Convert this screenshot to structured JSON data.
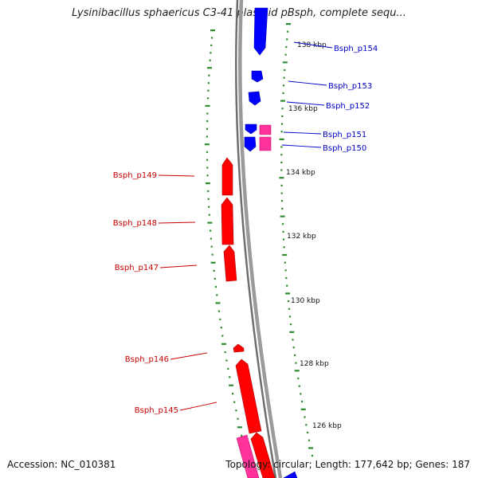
{
  "title": "Lysinibacillus sphaericus C3-41 plasmid pBsph, complete sequ...",
  "accession_text": "Accession: NC_010381",
  "summary_text": "Topology: circular; Length: 177,642 bp; Genes: 187",
  "colors": {
    "backbone": "#8a8a8a",
    "tick": "#2e8b2e",
    "forward_gene": "#0000ff",
    "reverse_gene": "#ff0000",
    "pink_gene": "#ff3399",
    "forward_label": "#0000c8",
    "reverse_label": "#c80000"
  },
  "ruler_labels": [
    "138 kbp",
    "136 kbp",
    "134 kbp",
    "132 kbp",
    "130 kbp",
    "128 kbp",
    "126 kbp"
  ],
  "gene_labels": {
    "forward": [
      "Bsph_p154",
      "Bsph_p153",
      "Bsph_p152",
      "Bsph_p151",
      "Bsph_p150"
    ],
    "reverse": [
      "Bsph_p149",
      "Bsph_p148",
      "Bsph_p147",
      "Bsph_p146",
      "Bsph_p145"
    ]
  }
}
